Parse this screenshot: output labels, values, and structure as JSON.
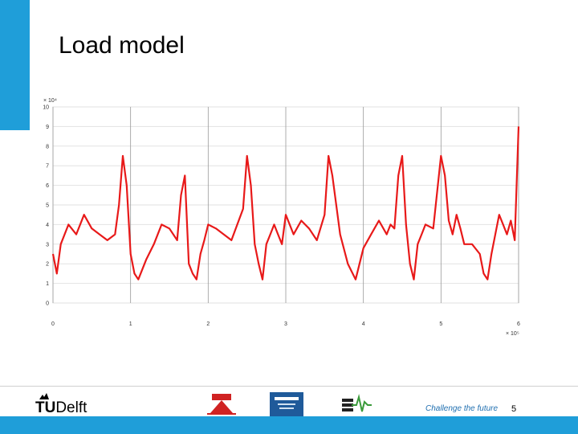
{
  "slide": {
    "title": "Load model",
    "footer_tagline": "Challenge the future",
    "page_number": "5",
    "accent_color": "#1f9ed9"
  },
  "logos": {
    "tudelft": {
      "prefix": "TU",
      "suffix": "Delft",
      "icon": "tudelft-flame-icon"
    },
    "partner_logos": [
      "pes-society-logo",
      "ieee-logo",
      "ias-logo"
    ]
  },
  "chart_data": {
    "type": "line",
    "title": "",
    "xlabel": "",
    "ylabel": "",
    "x_multiplier": "× 10⁵",
    "y_multiplier": "× 10⁴",
    "xlim": [
      0,
      6
    ],
    "ylim": [
      0,
      10
    ],
    "x_ticks": [
      "0",
      "1",
      "2",
      "3",
      "4",
      "5",
      "6"
    ],
    "y_ticks": [
      "0",
      "1",
      "2",
      "3",
      "4",
      "5",
      "6",
      "7",
      "8",
      "9",
      "10"
    ],
    "grid": true,
    "series": [
      {
        "color": "#e81919",
        "x": [
          0,
          0.05,
          0.1,
          0.2,
          0.3,
          0.4,
          0.5,
          0.6,
          0.7,
          0.8,
          0.85,
          0.9,
          0.95,
          1.0,
          1.05,
          1.1,
          1.2,
          1.3,
          1.4,
          1.5,
          1.6,
          1.65,
          1.7,
          1.75,
          1.8,
          1.85,
          1.9,
          1.95,
          2.0,
          2.1,
          2.2,
          2.3,
          2.45,
          2.5,
          2.55,
          2.6,
          2.65,
          2.7,
          2.75,
          2.8,
          2.85,
          2.9,
          2.95,
          3.0,
          3.1,
          3.2,
          3.3,
          3.4,
          3.5,
          3.55,
          3.6,
          3.7,
          3.8,
          3.9,
          4.0,
          4.1,
          4.2,
          4.3,
          4.35,
          4.4,
          4.45,
          4.5,
          4.55,
          4.6,
          4.65,
          4.7,
          4.75,
          4.8,
          4.9,
          5.0,
          5.05,
          5.1,
          5.15,
          5.2,
          5.25,
          5.3,
          5.4,
          5.5,
          5.55,
          5.6,
          5.65,
          5.7,
          5.75,
          5.8,
          5.85,
          5.9,
          5.95,
          6.0
        ],
        "y": [
          2.5,
          1.5,
          3.0,
          4.0,
          3.5,
          4.5,
          3.8,
          3.5,
          3.2,
          3.5,
          5.0,
          7.5,
          6.0,
          2.5,
          1.5,
          1.2,
          2.2,
          3.0,
          4.0,
          3.8,
          3.2,
          5.5,
          6.5,
          2.0,
          1.5,
          1.2,
          2.5,
          3.2,
          4.0,
          3.8,
          3.5,
          3.2,
          4.8,
          7.5,
          6.0,
          3.0,
          2.0,
          1.2,
          3.0,
          3.5,
          4.0,
          3.5,
          3.0,
          4.5,
          3.5,
          4.2,
          3.8,
          3.2,
          4.5,
          7.5,
          6.5,
          3.5,
          2.0,
          1.2,
          2.8,
          3.5,
          4.2,
          3.5,
          4.0,
          3.8,
          6.5,
          7.5,
          4.0,
          2.0,
          1.2,
          3.0,
          3.5,
          4.0,
          3.8,
          7.5,
          6.5,
          4.2,
          3.5,
          4.5,
          3.8,
          3.0,
          3.0,
          2.5,
          1.5,
          1.2,
          2.5,
          3.5,
          4.5,
          4.0,
          3.5,
          4.2,
          3.2,
          9.0
        ]
      }
    ]
  }
}
